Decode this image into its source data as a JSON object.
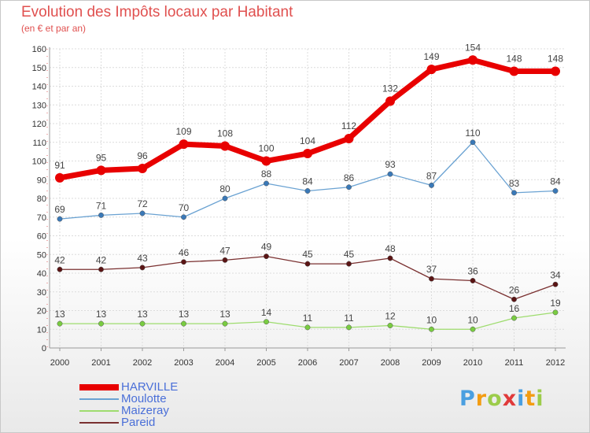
{
  "chart_data": {
    "type": "line",
    "title": "Evolution des Impôts locaux par Habitant",
    "subtitle": "(en € et par an)",
    "categories": [
      "2000",
      "2001",
      "2002",
      "2003",
      "2004",
      "2005",
      "2006",
      "2007",
      "2008",
      "2009",
      "2010",
      "2011",
      "2012"
    ],
    "ylim": [
      0,
      160
    ],
    "yticks": [
      0,
      10,
      20,
      30,
      40,
      50,
      60,
      70,
      80,
      90,
      100,
      110,
      120,
      130,
      140,
      150,
      160
    ],
    "grid": true,
    "legend_position": "bottom-left",
    "series": [
      {
        "name": "HARVILLE",
        "color": "#e80000",
        "marker": "#e80000",
        "values": [
          91,
          95,
          96,
          109,
          108,
          100,
          104,
          112,
          132,
          149,
          154,
          148,
          148
        ]
      },
      {
        "name": "Moulotte",
        "color": "#6aa2d2",
        "marker": "#3a79b8",
        "values": [
          69,
          71,
          72,
          70,
          80,
          88,
          84,
          86,
          93,
          87,
          110,
          83,
          84
        ]
      },
      {
        "name": "Maizeray",
        "color": "#9edc6e",
        "marker": "#79cc41",
        "values": [
          13,
          13,
          13,
          13,
          13,
          14,
          11,
          11,
          12,
          10,
          10,
          16,
          19
        ]
      },
      {
        "name": "Pareid",
        "color": "#7a3030",
        "marker": "#5a1414",
        "values": [
          42,
          42,
          43,
          46,
          47,
          49,
          45,
          45,
          48,
          37,
          36,
          26,
          34
        ]
      }
    ]
  },
  "logo": {
    "letters": [
      "P",
      "r",
      "o",
      "x",
      "i",
      "t",
      "i"
    ],
    "colors": [
      "#4a9fe0",
      "#f39c12",
      "#9ccc4a",
      "#e03a3a",
      "#4a9fe0",
      "#f39c12",
      "#9ccc4a"
    ]
  }
}
